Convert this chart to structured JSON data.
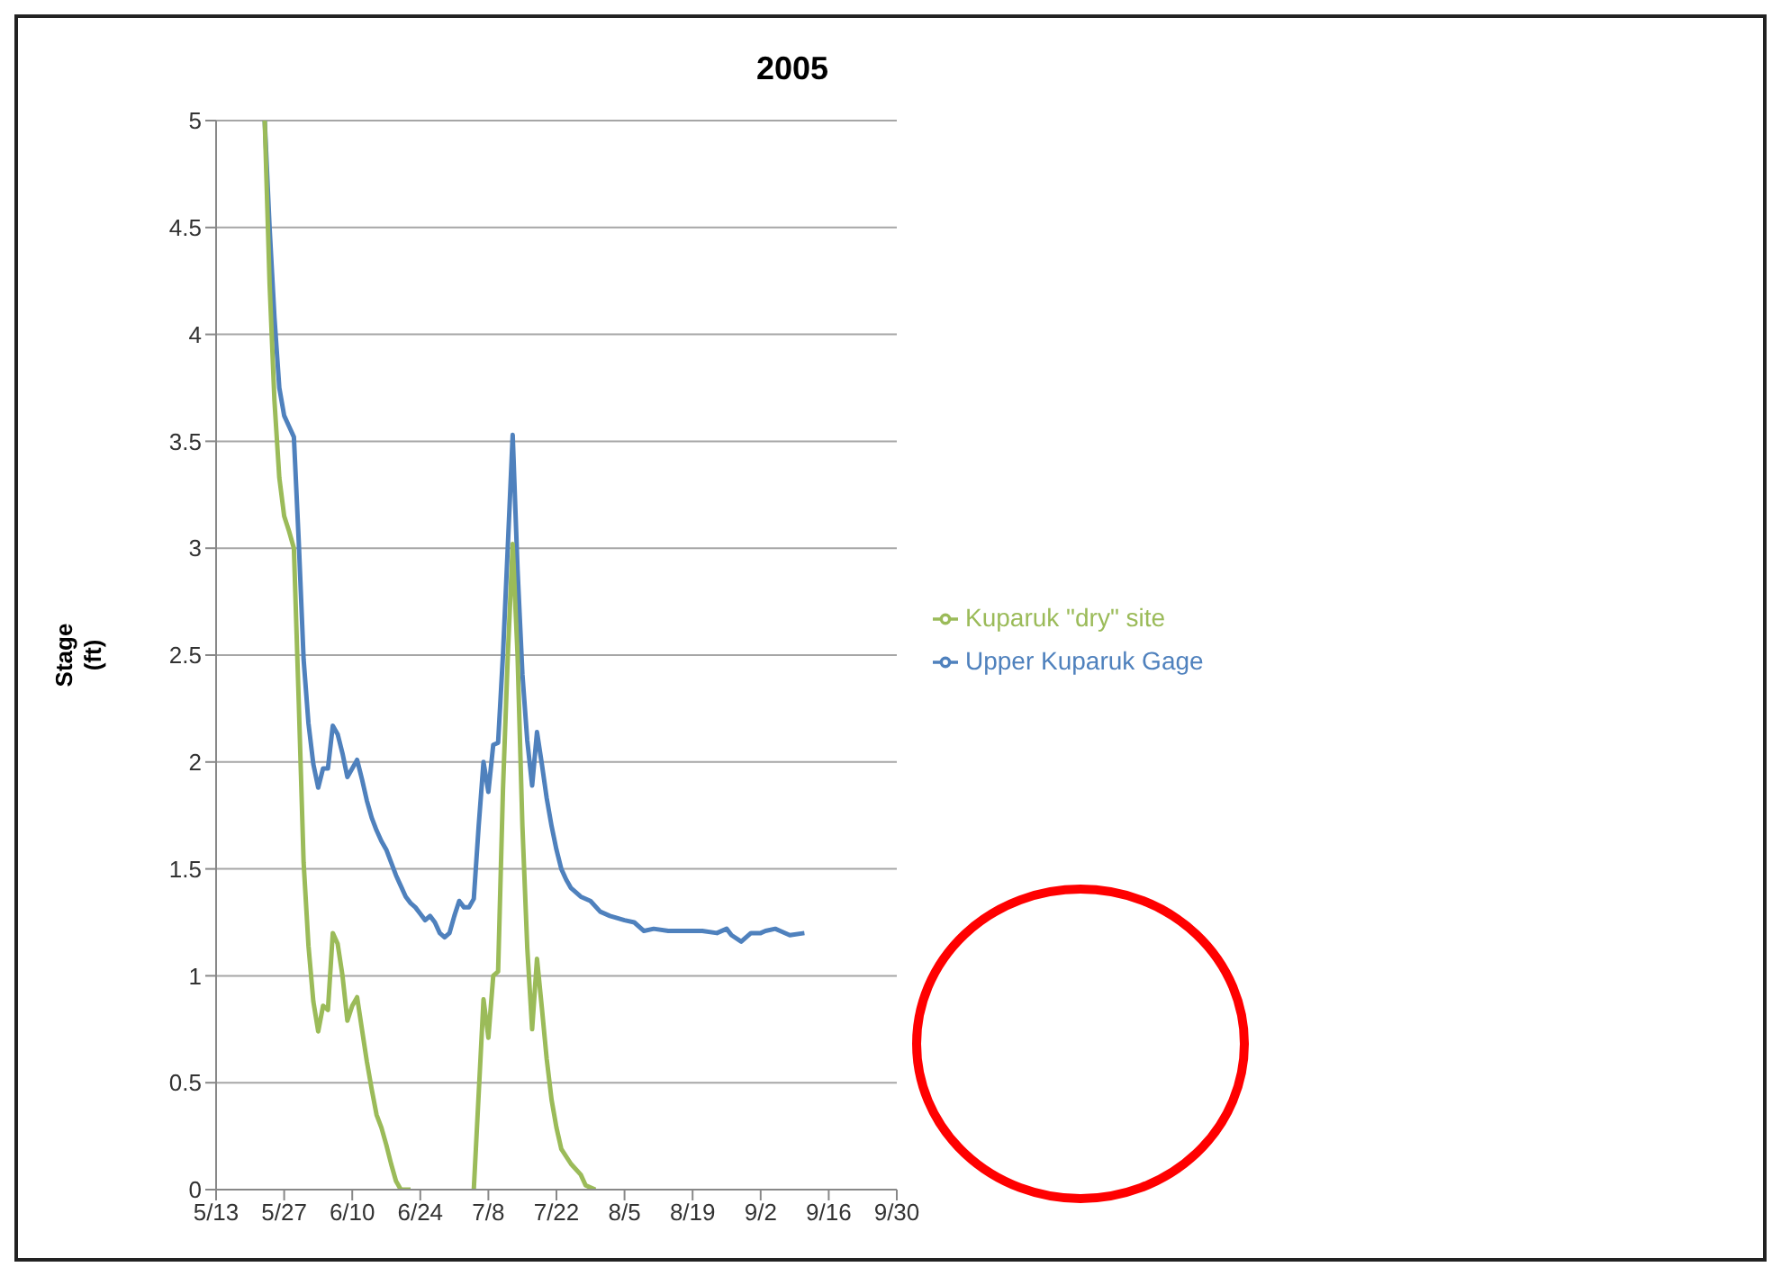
{
  "chart_data": {
    "type": "line",
    "title": "2005",
    "ylabel": "Stage (ft)",
    "xlim": [
      "--05-13",
      "--09-30"
    ],
    "xticks": [
      {
        "value": "--05-13",
        "label": "5/13"
      },
      {
        "value": "--05-27",
        "label": "5/27"
      },
      {
        "value": "--06-10",
        "label": "6/10"
      },
      {
        "value": "--06-24",
        "label": "6/24"
      },
      {
        "value": "--07-08",
        "label": "7/8"
      },
      {
        "value": "--07-22",
        "label": "7/22"
      },
      {
        "value": "--08-05",
        "label": "8/5"
      },
      {
        "value": "--08-19",
        "label": "8/19"
      },
      {
        "value": "--09-02",
        "label": "9/2"
      },
      {
        "value": "--09-16",
        "label": "9/16"
      },
      {
        "value": "--09-30",
        "label": "9/30"
      }
    ],
    "ylim": [
      0,
      5
    ],
    "yticks": [
      0,
      0.5,
      1,
      1.5,
      2,
      2.5,
      3,
      3.5,
      4,
      4.5,
      5
    ],
    "grid": "y",
    "legend": "right",
    "marker": "none",
    "line_style": "solid",
    "series": [
      {
        "name": "Upper Kuparuk Gage",
        "color": "#4f81bd",
        "x": [
          "--05-23",
          "--05-24",
          "--05-25",
          "--05-26",
          "--05-27",
          "--05-28",
          "--05-29",
          "--05-30",
          "--05-31",
          "--06-01",
          "--06-02",
          "--06-03",
          "--06-04",
          "--06-05",
          "--06-06",
          "--06-07",
          "--06-08",
          "--06-09",
          "--06-10",
          "--06-11",
          "--06-12",
          "--06-13",
          "--06-14",
          "--06-15",
          "--06-16",
          "--06-17",
          "--06-18",
          "--06-19",
          "--06-20",
          "--06-21",
          "--06-22",
          "--06-23",
          "--06-24",
          "--06-25",
          "--06-26",
          "--06-27",
          "--06-28",
          "--06-29",
          "--06-30",
          "--07-01",
          "--07-02",
          "--07-03",
          "--07-04",
          "--07-05",
          "--07-06",
          "--07-07",
          "--07-08",
          "--07-09",
          "--07-10",
          "--07-11",
          "--07-12",
          "--07-13",
          "--07-14",
          "--07-15",
          "--07-16",
          "--07-17",
          "--07-18",
          "--07-19",
          "--07-20",
          "--07-21",
          "--07-22",
          "--07-23",
          "--07-24",
          "--07-25",
          "--07-27",
          "--07-29",
          "--07-31",
          "--08-02",
          "--08-05",
          "--08-07",
          "--08-09",
          "--08-11",
          "--08-14",
          "--08-17",
          "--08-21",
          "--08-24",
          "--08-26",
          "--08-27",
          "--08-29",
          "--08-31",
          "--09-02",
          "--09-03",
          "--09-05",
          "--09-06",
          "--09-08",
          "--09-11"
        ],
        "values": [
          5.0,
          4.5,
          4.08,
          3.75,
          3.62,
          3.57,
          3.52,
          3.03,
          2.48,
          2.18,
          1.99,
          1.88,
          1.97,
          1.97,
          2.17,
          2.13,
          2.04,
          1.93,
          1.97,
          2.01,
          1.92,
          1.82,
          1.74,
          1.68,
          1.63,
          1.59,
          1.53,
          1.47,
          1.42,
          1.37,
          1.34,
          1.32,
          1.29,
          1.26,
          1.28,
          1.25,
          1.2,
          1.18,
          1.2,
          1.28,
          1.35,
          1.32,
          1.32,
          1.36,
          1.7,
          2.0,
          1.86,
          2.08,
          2.09,
          2.5,
          3.01,
          3.53,
          2.9,
          2.41,
          2.1,
          1.89,
          2.14,
          1.99,
          1.83,
          1.7,
          1.59,
          1.5,
          1.45,
          1.41,
          1.37,
          1.35,
          1.3,
          1.28,
          1.26,
          1.25,
          1.21,
          1.22,
          1.21,
          1.21,
          1.21,
          1.2,
          1.22,
          1.19,
          1.16,
          1.2,
          1.2,
          1.21,
          1.22,
          1.21,
          1.19,
          1.2
        ]
      },
      {
        "name": "Kuparuk \"dry\" site",
        "color": "#9bbb59",
        "x": [
          "--05-23",
          "--05-24",
          "--05-25",
          "--05-26",
          "--05-27",
          "--05-28",
          "--05-29",
          "--05-30",
          "--05-31",
          "--06-01",
          "--06-02",
          "--06-03",
          "--06-04",
          "--06-05",
          "--06-06",
          "--06-07",
          "--06-08",
          "--06-09",
          "--06-10",
          "--06-11",
          "--06-12",
          "--06-13",
          "--06-14",
          "--06-15",
          "--06-16",
          "--06-17",
          "--06-18",
          "--06-19",
          "--06-20",
          "--06-22",
          "--06-28",
          "--07-05",
          "--07-07",
          "--07-08",
          "--07-09",
          "--07-10",
          "--07-11",
          "--07-12",
          "--07-13",
          "--07-14",
          "--07-15",
          "--07-16",
          "--07-17",
          "--07-18",
          "--07-19",
          "--07-20",
          "--07-21",
          "--07-22",
          "--07-23",
          "--07-25",
          "--07-27",
          "--07-28",
          "--07-30"
        ],
        "values": [
          5.0,
          4.24,
          3.69,
          3.33,
          3.15,
          3.08,
          3.0,
          2.28,
          1.53,
          1.14,
          0.88,
          0.74,
          0.86,
          0.84,
          1.2,
          1.15,
          1.0,
          0.79,
          0.86,
          0.9,
          0.75,
          0.6,
          0.47,
          0.35,
          0.29,
          0.21,
          0.12,
          0.04,
          0.0,
          0.0,
          null,
          0.0,
          0.89,
          0.71,
          1.0,
          1.02,
          1.87,
          2.5,
          3.02,
          2.5,
          1.7,
          1.13,
          0.75,
          1.08,
          0.85,
          0.61,
          0.42,
          0.29,
          0.19,
          0.12,
          0.07,
          0.02,
          0.0
        ]
      }
    ]
  }
}
